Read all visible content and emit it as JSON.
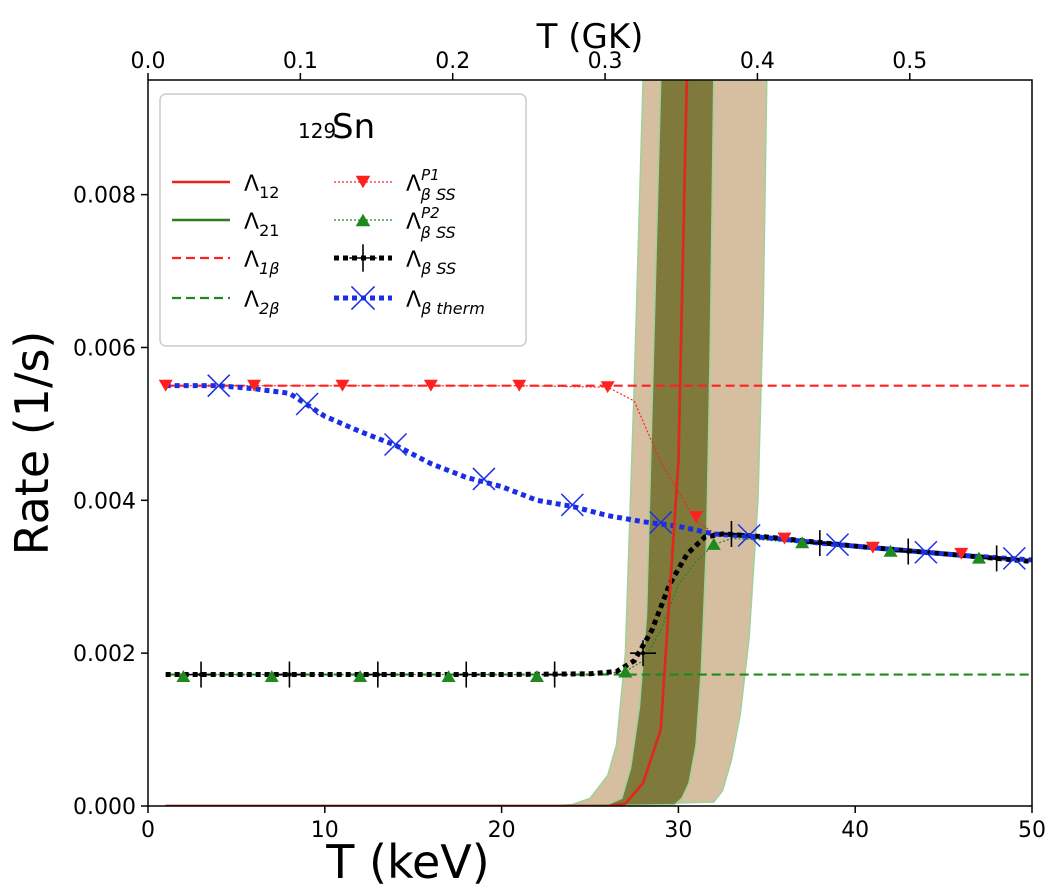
{
  "chart_data": {
    "type": "line",
    "title": "",
    "xlabel": "T (keV)",
    "ylabel": "Rate (1/s)",
    "top_xlabel": "T (GK)",
    "xlim": [
      0,
      50
    ],
    "ylim": [
      0,
      0.0095
    ],
    "x_ticks": [
      0,
      10,
      20,
      30,
      40,
      50
    ],
    "x_tick_labels": [
      "0",
      "10",
      "20",
      "30",
      "40",
      "50"
    ],
    "y_ticks": [
      0.0,
      0.002,
      0.004,
      0.006,
      0.008
    ],
    "y_tick_labels": [
      "0.000",
      "0.002",
      "0.004",
      "0.006",
      "0.008"
    ],
    "top_ticks_gk": [
      0.0,
      0.1,
      0.2,
      0.3,
      0.4,
      0.5
    ],
    "top_tick_labels": [
      "0.0",
      "0.1",
      "0.2",
      "0.3",
      "0.4",
      "0.5"
    ],
    "legend": {
      "title_sup": "129",
      "title_main": "Sn",
      "location": "top-left",
      "entries": [
        {
          "id": "l12",
          "base": "Λ",
          "sub": "12",
          "sup": ""
        },
        {
          "id": "l21",
          "base": "Λ",
          "sub": "21",
          "sup": ""
        },
        {
          "id": "l1b",
          "base": "Λ",
          "sub": "1β",
          "sup": ""
        },
        {
          "id": "l2b",
          "base": "Λ",
          "sub": "2β",
          "sup": ""
        },
        {
          "id": "p1",
          "base": "Λ",
          "sub": "β SS",
          "sup": "P1"
        },
        {
          "id": "p2",
          "base": "Λ",
          "sub": "β SS",
          "sup": "P2"
        },
        {
          "id": "ss",
          "base": "Λ",
          "sub": "β SS",
          "sup": ""
        },
        {
          "id": "th",
          "base": "Λ",
          "sub": "β therm",
          "sup": ""
        }
      ]
    },
    "series": [
      {
        "name": "Λ12",
        "style": "solid",
        "color": "#e8241c",
        "x": [
          1,
          26,
          27,
          28,
          29,
          30,
          31
        ],
        "y": [
          0,
          0,
          3e-05,
          0.0003,
          0.001,
          0.0045,
          0.015
        ]
      },
      {
        "name": "Λ21",
        "style": "solid",
        "color": "#2e7d1a",
        "x": [
          1,
          26,
          27,
          28,
          29,
          30,
          31
        ],
        "y": [
          0,
          0,
          3e-05,
          0.0003,
          0.001,
          0.0045,
          0.015
        ]
      },
      {
        "name": "Λ1β",
        "style": "dashed",
        "color": "#ff2020",
        "x": [
          1,
          50
        ],
        "y": [
          0.0055,
          0.0055
        ]
      },
      {
        "name": "Λ2β",
        "style": "dashed",
        "color": "#1e8a1e",
        "x": [
          1,
          50
        ],
        "y": [
          0.00172,
          0.00172
        ]
      },
      {
        "name": "ΛβSS P1",
        "style": "dotted",
        "color": "#ff2020",
        "marker": "triangle-down",
        "x": [
          1,
          6,
          11,
          16,
          21,
          26,
          27.5,
          29,
          31,
          32,
          33,
          35,
          37,
          39,
          41,
          43,
          45,
          47,
          49,
          50
        ],
        "y": [
          0.0055,
          0.0055,
          0.0055,
          0.0055,
          0.0055,
          0.00548,
          0.0053,
          0.0045,
          0.00372,
          0.00358,
          0.00355,
          0.0035,
          0.00346,
          0.00342,
          0.00338,
          0.00334,
          0.0033,
          0.00326,
          0.00323,
          0.00322
        ],
        "marker_x": [
          1,
          6,
          11,
          16,
          21,
          26,
          31,
          36,
          41,
          46
        ],
        "marker_y": [
          0.0055,
          0.0055,
          0.0055,
          0.0055,
          0.0055,
          0.00548,
          0.00378,
          0.0035,
          0.00338,
          0.0033
        ]
      },
      {
        "name": "ΛβSS P2",
        "style": "dotted",
        "color": "#1e8a1e",
        "marker": "triangle-up",
        "x": [
          1,
          5,
          10,
          15,
          20,
          25,
          27,
          28,
          29,
          30,
          31,
          32,
          33,
          35,
          37,
          39,
          41,
          43,
          45,
          47,
          49,
          50
        ],
        "y": [
          0.00172,
          0.00172,
          0.00172,
          0.00172,
          0.00172,
          0.00172,
          0.00176,
          0.0019,
          0.0023,
          0.0029,
          0.0032,
          0.00342,
          0.0035,
          0.00348,
          0.00344,
          0.0034,
          0.00336,
          0.00332,
          0.00328,
          0.00325,
          0.00322,
          0.0032
        ],
        "marker_x": [
          2,
          7,
          12,
          17,
          22,
          27,
          32,
          37,
          42,
          47
        ],
        "marker_y": [
          0.0017,
          0.0017,
          0.0017,
          0.0017,
          0.0017,
          0.00176,
          0.00343,
          0.00345,
          0.00334,
          0.00325
        ]
      },
      {
        "name": "ΛβSS",
        "style": "dotted-thick",
        "color": "#000000",
        "marker": "plus",
        "x": [
          1,
          5,
          10,
          15,
          20,
          25,
          26.5,
          27.5,
          28.5,
          29.5,
          30.5,
          31.5,
          32.5,
          35,
          40,
          45,
          50
        ],
        "y": [
          0.00172,
          0.00172,
          0.00172,
          0.00172,
          0.00172,
          0.00173,
          0.00176,
          0.0019,
          0.0023,
          0.0029,
          0.0033,
          0.00352,
          0.00356,
          0.00352,
          0.0034,
          0.0033,
          0.0032
        ],
        "marker_x": [
          3,
          8,
          13,
          18,
          23,
          28,
          33,
          38,
          43,
          48
        ],
        "marker_y": [
          0.00172,
          0.00172,
          0.00172,
          0.00172,
          0.00172,
          0.002,
          0.00356,
          0.00344,
          0.00333,
          0.00324
        ]
      },
      {
        "name": "Λβtherm",
        "style": "dotted-thick",
        "color": "#1a2ee8",
        "marker": "x",
        "x": [
          1,
          4,
          6,
          8,
          10,
          12,
          14,
          16,
          18,
          20,
          22,
          24,
          26,
          28,
          30,
          32,
          34,
          36,
          38,
          40,
          42,
          44,
          46,
          48,
          50
        ],
        "y": [
          0.0055,
          0.0055,
          0.00546,
          0.0054,
          0.0051,
          0.0049,
          0.00472,
          0.00448,
          0.0043,
          0.00418,
          0.004,
          0.00392,
          0.0038,
          0.00372,
          0.00366,
          0.00356,
          0.00353,
          0.00349,
          0.00344,
          0.0034,
          0.00336,
          0.00332,
          0.00328,
          0.00325,
          0.00322
        ],
        "marker_x": [
          4,
          9,
          14,
          19,
          24,
          29,
          34,
          39,
          44,
          49
        ],
        "marker_y": [
          0.0055,
          0.00526,
          0.00473,
          0.00428,
          0.00394,
          0.00371,
          0.00354,
          0.00342,
          0.00332,
          0.00324
        ]
      }
    ],
    "bands": [
      {
        "name": "outer-uncertainty",
        "color": "#c8a882",
        "opacity": 0.75,
        "left_x": [
          23,
          24,
          25,
          26,
          26.5,
          27,
          27.5,
          28
        ],
        "left_y": [
          0,
          2e-05,
          0.0001,
          0.0004,
          0.0008,
          0.002,
          0.0055,
          0.0095
        ],
        "right_x": [
          35,
          34.8,
          34.5,
          34,
          33.5,
          33,
          32.5,
          32
        ],
        "right_y": [
          0.0095,
          0.0065,
          0.004,
          0.0022,
          0.0012,
          0.0006,
          0.0002,
          5e-05
        ]
      },
      {
        "name": "inner-uncertainty",
        "color": "#6b6a25",
        "opacity": 0.82,
        "left_x": [
          25,
          26,
          26.8,
          27.3,
          27.8,
          28.2,
          28.6,
          29
        ],
        "left_y": [
          0,
          2e-05,
          0.0001,
          0.0005,
          0.0013,
          0.0025,
          0.006,
          0.0095
        ],
        "right_x": [
          32,
          31.8,
          31.6,
          31.3,
          31,
          30.6,
          30.2,
          29.8
        ],
        "right_y": [
          0.0095,
          0.006,
          0.0035,
          0.0018,
          0.0008,
          0.0003,
          0.0001,
          2e-05
        ]
      }
    ]
  }
}
